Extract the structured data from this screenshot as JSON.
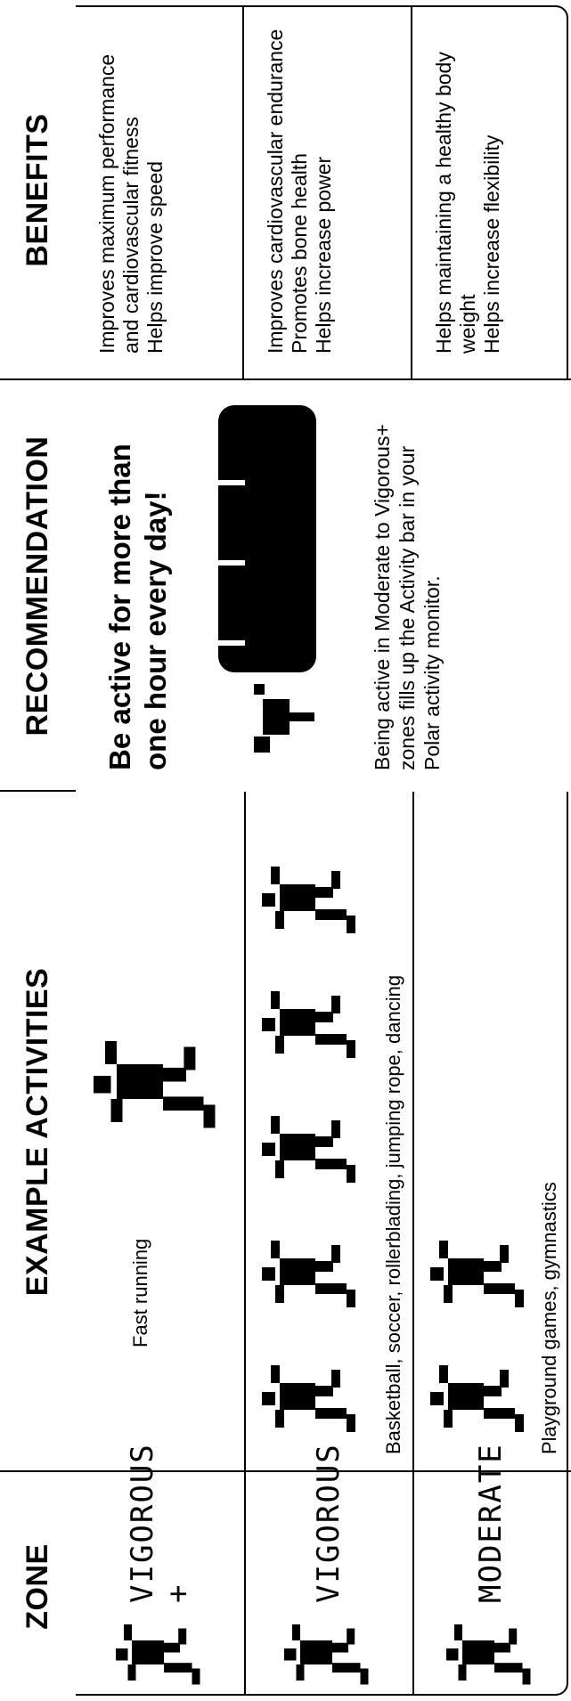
{
  "header": [
    "ZONE",
    "EXAMPLE ACTIVITIES",
    "RECOMMENDATION",
    "BENEFITS"
  ],
  "rows": [
    {
      "zone": "VIGOROUS +",
      "activities": "Fast running",
      "benefits": [
        "Improves maximum performance and cardiovascular fitness",
        "Helps improve speed"
      ]
    },
    {
      "zone": "VIGOROUS",
      "activities": "Basketball, soccer, rollerblading, jumping rope, dancing",
      "benefits": [
        "Improves cardiovascular endurance",
        "Promotes bone health",
        "Helps increase power"
      ]
    },
    {
      "zone": "MODERATE",
      "activities": "Playground games, gymnastics",
      "benefits": [
        "Helps maintaining a healthy body weight",
        "Helps increase flexibility"
      ]
    }
  ],
  "recommendation": {
    "headline": "Be active for more than one hour every day!",
    "text": "Being active in Moderate to Vigorous+ zones fills up the Activity bar in your Polar activity monitor."
  }
}
